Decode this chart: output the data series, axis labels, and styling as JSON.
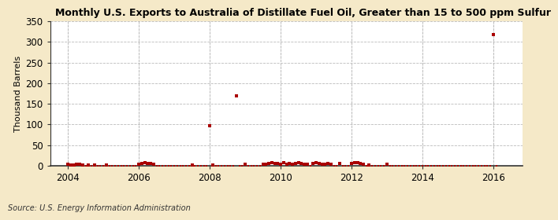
{
  "title": "Monthly U.S. Exports to Australia of Distillate Fuel Oil, Greater than 15 to 500 ppm Sulfur",
  "ylabel": "Thousand Barrels",
  "source": "Source: U.S. Energy Information Administration",
  "fig_background_color": "#f5e9c8",
  "plot_background_color": "#ffffff",
  "ylim": [
    0,
    350
  ],
  "yticks": [
    0,
    50,
    100,
    150,
    200,
    250,
    300,
    350
  ],
  "xlim_start": 2003.5,
  "xlim_end": 2016.83,
  "xticks": [
    2004,
    2006,
    2008,
    2010,
    2012,
    2014,
    2016
  ],
  "marker_color": "#aa0000",
  "grid_color": "#bbbbbb",
  "data_points": [
    {
      "date": 2004.0,
      "value": 3
    },
    {
      "date": 2004.083,
      "value": 2
    },
    {
      "date": 2004.167,
      "value": 1
    },
    {
      "date": 2004.25,
      "value": 4
    },
    {
      "date": 2004.333,
      "value": 3
    },
    {
      "date": 2004.417,
      "value": 2
    },
    {
      "date": 2004.5,
      "value": 0
    },
    {
      "date": 2004.583,
      "value": 1
    },
    {
      "date": 2004.667,
      "value": 0
    },
    {
      "date": 2004.75,
      "value": 2
    },
    {
      "date": 2004.833,
      "value": 0
    },
    {
      "date": 2004.917,
      "value": 0
    },
    {
      "date": 2005.0,
      "value": 0
    },
    {
      "date": 2005.083,
      "value": 1
    },
    {
      "date": 2005.167,
      "value": 0
    },
    {
      "date": 2005.25,
      "value": 0
    },
    {
      "date": 2005.333,
      "value": 0
    },
    {
      "date": 2005.417,
      "value": 0
    },
    {
      "date": 2005.5,
      "value": 0
    },
    {
      "date": 2005.583,
      "value": 0
    },
    {
      "date": 2005.667,
      "value": 0
    },
    {
      "date": 2005.75,
      "value": 0
    },
    {
      "date": 2005.833,
      "value": 0
    },
    {
      "date": 2005.917,
      "value": 0
    },
    {
      "date": 2006.0,
      "value": 3
    },
    {
      "date": 2006.083,
      "value": 5
    },
    {
      "date": 2006.167,
      "value": 8
    },
    {
      "date": 2006.25,
      "value": 6
    },
    {
      "date": 2006.333,
      "value": 5
    },
    {
      "date": 2006.417,
      "value": 4
    },
    {
      "date": 2006.5,
      "value": 0
    },
    {
      "date": 2006.583,
      "value": 0
    },
    {
      "date": 2006.667,
      "value": 0
    },
    {
      "date": 2006.75,
      "value": 0
    },
    {
      "date": 2006.833,
      "value": 0
    },
    {
      "date": 2006.917,
      "value": 0
    },
    {
      "date": 2007.0,
      "value": 0
    },
    {
      "date": 2007.083,
      "value": 0
    },
    {
      "date": 2007.167,
      "value": 0
    },
    {
      "date": 2007.25,
      "value": 0
    },
    {
      "date": 2007.333,
      "value": 0
    },
    {
      "date": 2007.417,
      "value": 0
    },
    {
      "date": 2007.5,
      "value": 2
    },
    {
      "date": 2007.583,
      "value": 0
    },
    {
      "date": 2007.667,
      "value": 0
    },
    {
      "date": 2007.75,
      "value": 0
    },
    {
      "date": 2007.833,
      "value": 0
    },
    {
      "date": 2007.917,
      "value": 0
    },
    {
      "date": 2008.0,
      "value": 97
    },
    {
      "date": 2008.083,
      "value": 2
    },
    {
      "date": 2008.167,
      "value": 0
    },
    {
      "date": 2008.25,
      "value": 0
    },
    {
      "date": 2008.333,
      "value": 0
    },
    {
      "date": 2008.417,
      "value": 0
    },
    {
      "date": 2008.5,
      "value": 0
    },
    {
      "date": 2008.583,
      "value": 0
    },
    {
      "date": 2008.667,
      "value": 0
    },
    {
      "date": 2008.75,
      "value": 170
    },
    {
      "date": 2008.833,
      "value": 0
    },
    {
      "date": 2008.917,
      "value": 0
    },
    {
      "date": 2009.0,
      "value": 3
    },
    {
      "date": 2009.083,
      "value": 0
    },
    {
      "date": 2009.167,
      "value": 0
    },
    {
      "date": 2009.25,
      "value": 0
    },
    {
      "date": 2009.333,
      "value": 0
    },
    {
      "date": 2009.417,
      "value": 0
    },
    {
      "date": 2009.5,
      "value": 3
    },
    {
      "date": 2009.583,
      "value": 4
    },
    {
      "date": 2009.667,
      "value": 5
    },
    {
      "date": 2009.75,
      "value": 8
    },
    {
      "date": 2009.833,
      "value": 6
    },
    {
      "date": 2009.917,
      "value": 5
    },
    {
      "date": 2010.0,
      "value": 4
    },
    {
      "date": 2010.083,
      "value": 7
    },
    {
      "date": 2010.167,
      "value": 3
    },
    {
      "date": 2010.25,
      "value": 5
    },
    {
      "date": 2010.333,
      "value": 4
    },
    {
      "date": 2010.417,
      "value": 6
    },
    {
      "date": 2010.5,
      "value": 8
    },
    {
      "date": 2010.583,
      "value": 5
    },
    {
      "date": 2010.667,
      "value": 3
    },
    {
      "date": 2010.75,
      "value": 4
    },
    {
      "date": 2010.833,
      "value": 0
    },
    {
      "date": 2010.917,
      "value": 5
    },
    {
      "date": 2011.0,
      "value": 8
    },
    {
      "date": 2011.083,
      "value": 6
    },
    {
      "date": 2011.167,
      "value": 4
    },
    {
      "date": 2011.25,
      "value": 3
    },
    {
      "date": 2011.333,
      "value": 5
    },
    {
      "date": 2011.417,
      "value": 4
    },
    {
      "date": 2011.5,
      "value": 0
    },
    {
      "date": 2011.583,
      "value": 0
    },
    {
      "date": 2011.667,
      "value": 6
    },
    {
      "date": 2011.75,
      "value": 0
    },
    {
      "date": 2011.833,
      "value": 0
    },
    {
      "date": 2011.917,
      "value": 0
    },
    {
      "date": 2012.0,
      "value": 5
    },
    {
      "date": 2012.083,
      "value": 8
    },
    {
      "date": 2012.167,
      "value": 7
    },
    {
      "date": 2012.25,
      "value": 6
    },
    {
      "date": 2012.333,
      "value": 4
    },
    {
      "date": 2012.417,
      "value": 0
    },
    {
      "date": 2012.5,
      "value": 2
    },
    {
      "date": 2012.583,
      "value": 0
    },
    {
      "date": 2012.667,
      "value": 0
    },
    {
      "date": 2012.75,
      "value": 0
    },
    {
      "date": 2012.833,
      "value": 0
    },
    {
      "date": 2012.917,
      "value": 0
    },
    {
      "date": 2013.0,
      "value": 4
    },
    {
      "date": 2013.083,
      "value": 0
    },
    {
      "date": 2013.167,
      "value": 0
    },
    {
      "date": 2013.25,
      "value": 0
    },
    {
      "date": 2013.333,
      "value": 0
    },
    {
      "date": 2013.417,
      "value": 0
    },
    {
      "date": 2013.5,
      "value": 0
    },
    {
      "date": 2013.583,
      "value": 0
    },
    {
      "date": 2013.667,
      "value": 0
    },
    {
      "date": 2013.75,
      "value": 0
    },
    {
      "date": 2013.833,
      "value": 0
    },
    {
      "date": 2013.917,
      "value": 0
    },
    {
      "date": 2014.0,
      "value": 0
    },
    {
      "date": 2014.083,
      "value": 0
    },
    {
      "date": 2014.167,
      "value": 0
    },
    {
      "date": 2014.25,
      "value": 0
    },
    {
      "date": 2014.333,
      "value": 0
    },
    {
      "date": 2014.417,
      "value": 0
    },
    {
      "date": 2014.5,
      "value": 0
    },
    {
      "date": 2014.583,
      "value": 0
    },
    {
      "date": 2014.667,
      "value": 0
    },
    {
      "date": 2014.75,
      "value": 0
    },
    {
      "date": 2014.833,
      "value": 0
    },
    {
      "date": 2014.917,
      "value": 0
    },
    {
      "date": 2015.0,
      "value": 0
    },
    {
      "date": 2015.083,
      "value": 0
    },
    {
      "date": 2015.167,
      "value": 0
    },
    {
      "date": 2015.25,
      "value": 0
    },
    {
      "date": 2015.333,
      "value": 0
    },
    {
      "date": 2015.417,
      "value": 0
    },
    {
      "date": 2015.5,
      "value": 0
    },
    {
      "date": 2015.583,
      "value": 0
    },
    {
      "date": 2015.667,
      "value": 0
    },
    {
      "date": 2015.75,
      "value": 0
    },
    {
      "date": 2015.833,
      "value": 0
    },
    {
      "date": 2015.917,
      "value": 0
    },
    {
      "date": 2016.0,
      "value": 317
    },
    {
      "date": 2016.083,
      "value": 0
    }
  ]
}
